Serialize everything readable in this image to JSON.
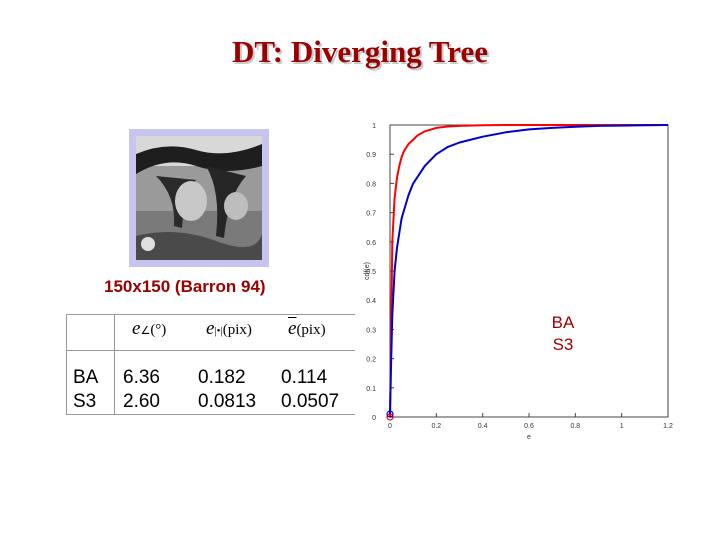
{
  "title": "DT: Diverging Tree",
  "image_caption": "150x150 (Barron 94)",
  "table": {
    "header": [
      "e∠(°)",
      "e|•|(pix)",
      "ē(pix)"
    ],
    "rows": [
      {
        "method": "BA",
        "values": [
          "6.36",
          "0.182",
          "0.114"
        ]
      },
      {
        "method": "S3",
        "values": [
          "2.60",
          "0.0813",
          "0.0507"
        ]
      }
    ]
  },
  "legend": {
    "items": [
      "BA",
      "S3"
    ]
  },
  "colors": {
    "title": "#990000",
    "BA": "#ff0000",
    "S3": "#0000cc",
    "photo_border": "#c5c5ef"
  },
  "chart_data": {
    "type": "line",
    "xlabel": "e",
    "ylabel": "cdf(e)",
    "xlim": [
      0,
      1.2
    ],
    "ylim": [
      0,
      1
    ],
    "xticks": [
      "0",
      "0.2",
      "0.4",
      "0.6",
      "0.8",
      "1",
      "1.2"
    ],
    "yticks": [
      "0",
      "0.1",
      "0.2",
      "0.3",
      "0.4",
      "0.5",
      "0.6",
      "0.7",
      "0.8",
      "0.9",
      "1"
    ],
    "grid": false,
    "series": [
      {
        "name": "BA",
        "color": "#ff0000",
        "x": [
          0,
          0.01,
          0.02,
          0.03,
          0.04,
          0.05,
          0.06,
          0.08,
          0.1,
          0.12,
          0.15,
          0.2,
          0.25,
          0.3,
          0.4,
          0.5,
          0.6,
          0.8,
          1.0,
          1.2
        ],
        "y": [
          0,
          0.6,
          0.75,
          0.82,
          0.86,
          0.89,
          0.91,
          0.935,
          0.95,
          0.965,
          0.978,
          0.99,
          0.995,
          0.997,
          0.999,
          1.0,
          1.0,
          1.0,
          1.0,
          1.0
        ]
      },
      {
        "name": "S3",
        "color": "#0000cc",
        "x": [
          0,
          0.005,
          0.01,
          0.02,
          0.03,
          0.05,
          0.08,
          0.1,
          0.15,
          0.2,
          0.25,
          0.3,
          0.4,
          0.5,
          0.6,
          0.7,
          0.8,
          0.9,
          1.0,
          1.1,
          1.2
        ],
        "y": [
          0.01,
          0.2,
          0.35,
          0.5,
          0.58,
          0.68,
          0.76,
          0.8,
          0.86,
          0.9,
          0.925,
          0.94,
          0.96,
          0.975,
          0.985,
          0.99,
          0.994,
          0.997,
          0.998,
          0.999,
          1.0
        ]
      }
    ]
  }
}
